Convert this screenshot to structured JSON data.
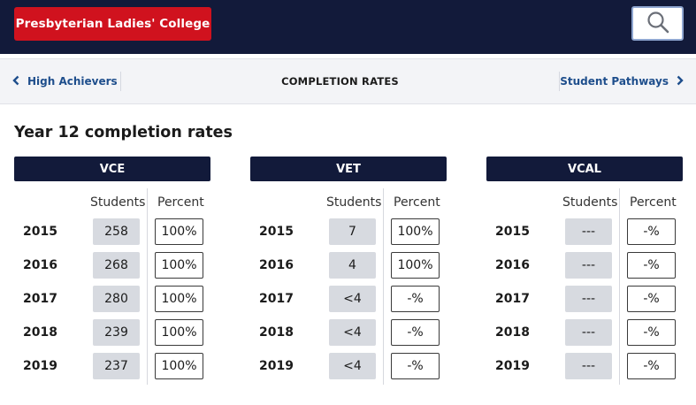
{
  "header": {
    "brand": "Presbyterian Ladies' College",
    "search_icon": "search-icon"
  },
  "subnav": {
    "prev_label": "High Achievers",
    "current_label": "COMPLETION RATES",
    "next_label": "Student Pathways"
  },
  "section_title": "Year 12 completion rates",
  "column_headers": {
    "students": "Students",
    "percent": "Percent"
  },
  "panels": [
    {
      "title": "VCE",
      "rows": [
        {
          "year": "2015",
          "students": "258",
          "percent": "100%"
        },
        {
          "year": "2016",
          "students": "268",
          "percent": "100%"
        },
        {
          "year": "2017",
          "students": "280",
          "percent": "100%"
        },
        {
          "year": "2018",
          "students": "239",
          "percent": "100%"
        },
        {
          "year": "2019",
          "students": "237",
          "percent": "100%"
        }
      ]
    },
    {
      "title": "VET",
      "rows": [
        {
          "year": "2015",
          "students": "7",
          "percent": "100%"
        },
        {
          "year": "2016",
          "students": "4",
          "percent": "100%"
        },
        {
          "year": "2017",
          "students": "<4",
          "percent": "-%"
        },
        {
          "year": "2018",
          "students": "<4",
          "percent": "-%"
        },
        {
          "year": "2019",
          "students": "<4",
          "percent": "-%"
        }
      ]
    },
    {
      "title": "VCAL",
      "rows": [
        {
          "year": "2015",
          "students": "---",
          "percent": "-%"
        },
        {
          "year": "2016",
          "students": "---",
          "percent": "-%"
        },
        {
          "year": "2017",
          "students": "---",
          "percent": "-%"
        },
        {
          "year": "2018",
          "students": "---",
          "percent": "-%"
        },
        {
          "year": "2019",
          "students": "---",
          "percent": "-%"
        }
      ]
    }
  ],
  "colors": {
    "navy": "#121a3a",
    "brand_red": "#d0121e",
    "link_blue": "#1e4e8c",
    "students_bg": "#d7dae0"
  }
}
